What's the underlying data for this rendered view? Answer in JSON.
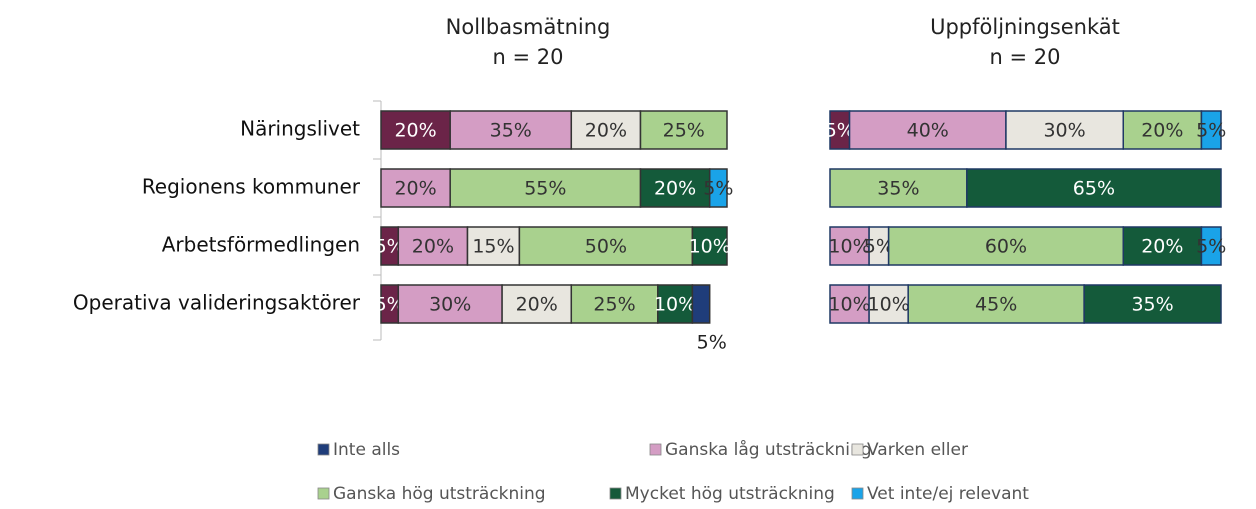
{
  "chart_data": [
    {
      "type": "stacked_barh",
      "title": "Nollbasmätning",
      "subtitle": "n = 20",
      "categories": [
        "Näringslivet",
        "Regionens kommuner",
        "Arbetsförmedlingen",
        "Operativa valideringsaktörer"
      ],
      "xlim": [
        0,
        100
      ],
      "series": [
        {
          "name": null,
          "color": "#6b2448",
          "values": [
            20,
            null,
            5,
            5
          ],
          "value_labels": [
            "20%",
            null,
            "5%",
            "5%"
          ]
        },
        {
          "name": "Ganska låg utsträckning",
          "color": "#d49dc4",
          "values": [
            35,
            20,
            20,
            30
          ],
          "value_labels": [
            "35%",
            "20%",
            "20%",
            "30%"
          ]
        },
        {
          "name": "Varken eller",
          "color": "#e8e6df",
          "values": [
            20,
            null,
            15,
            20
          ],
          "value_labels": [
            "20%",
            null,
            "15%",
            "20%"
          ]
        },
        {
          "name": "Ganska hög utsträckning",
          "color": "#a9d18e",
          "values": [
            25,
            55,
            50,
            25
          ],
          "value_labels": [
            "25%",
            "55%",
            "50%",
            "25%"
          ]
        },
        {
          "name": "Mycket hög utsträckning",
          "color": "#145a3a",
          "values": [
            null,
            20,
            10,
            10
          ],
          "value_labels": [
            null,
            "20%",
            "10%",
            "10%"
          ]
        },
        {
          "name": "Inte alls",
          "color": "#1f3d7a",
          "values": [
            null,
            null,
            null,
            5
          ],
          "value_labels": [
            null,
            null,
            null,
            "5%"
          ]
        },
        {
          "name": "Vet inte/ej relevant",
          "color": "#1aa3e8",
          "values": [
            null,
            5,
            null,
            null
          ],
          "value_labels": [
            null,
            "5%",
            null,
            null
          ]
        }
      ]
    },
    {
      "type": "stacked_barh",
      "title": "Uppföljningsenkät",
      "subtitle": "n = 20",
      "xlim": [
        0,
        100
      ],
      "series": [
        {
          "color": "#6b2448",
          "values": [
            5,
            null,
            null,
            null
          ],
          "value_labels": [
            "5%",
            null,
            null,
            null
          ]
        },
        {
          "color": "#d49dc4",
          "values": [
            40,
            null,
            10,
            10
          ],
          "value_labels": [
            "40%",
            null,
            "10%",
            "10%"
          ]
        },
        {
          "color": "#e8e6df",
          "values": [
            30,
            null,
            5,
            10
          ],
          "value_labels": [
            "30%",
            null,
            "5%",
            "10%"
          ]
        },
        {
          "color": "#a9d18e",
          "values": [
            20,
            35,
            60,
            45
          ],
          "value_labels": [
            "20%",
            "35%",
            "60%",
            "45%"
          ]
        },
        {
          "color": "#145a3a",
          "values": [
            null,
            65,
            20,
            35
          ],
          "value_labels": [
            null,
            "65%",
            "20%",
            "35%"
          ]
        },
        {
          "color": "#1f3d7a",
          "values": [
            null,
            null,
            null,
            null
          ],
          "value_labels": [
            null,
            null,
            null,
            null
          ]
        },
        {
          "color": "#1aa3e8",
          "values": [
            5,
            null,
            5,
            null
          ],
          "value_labels": [
            "5%",
            null,
            "5%",
            null
          ]
        }
      ]
    }
  ]
}
